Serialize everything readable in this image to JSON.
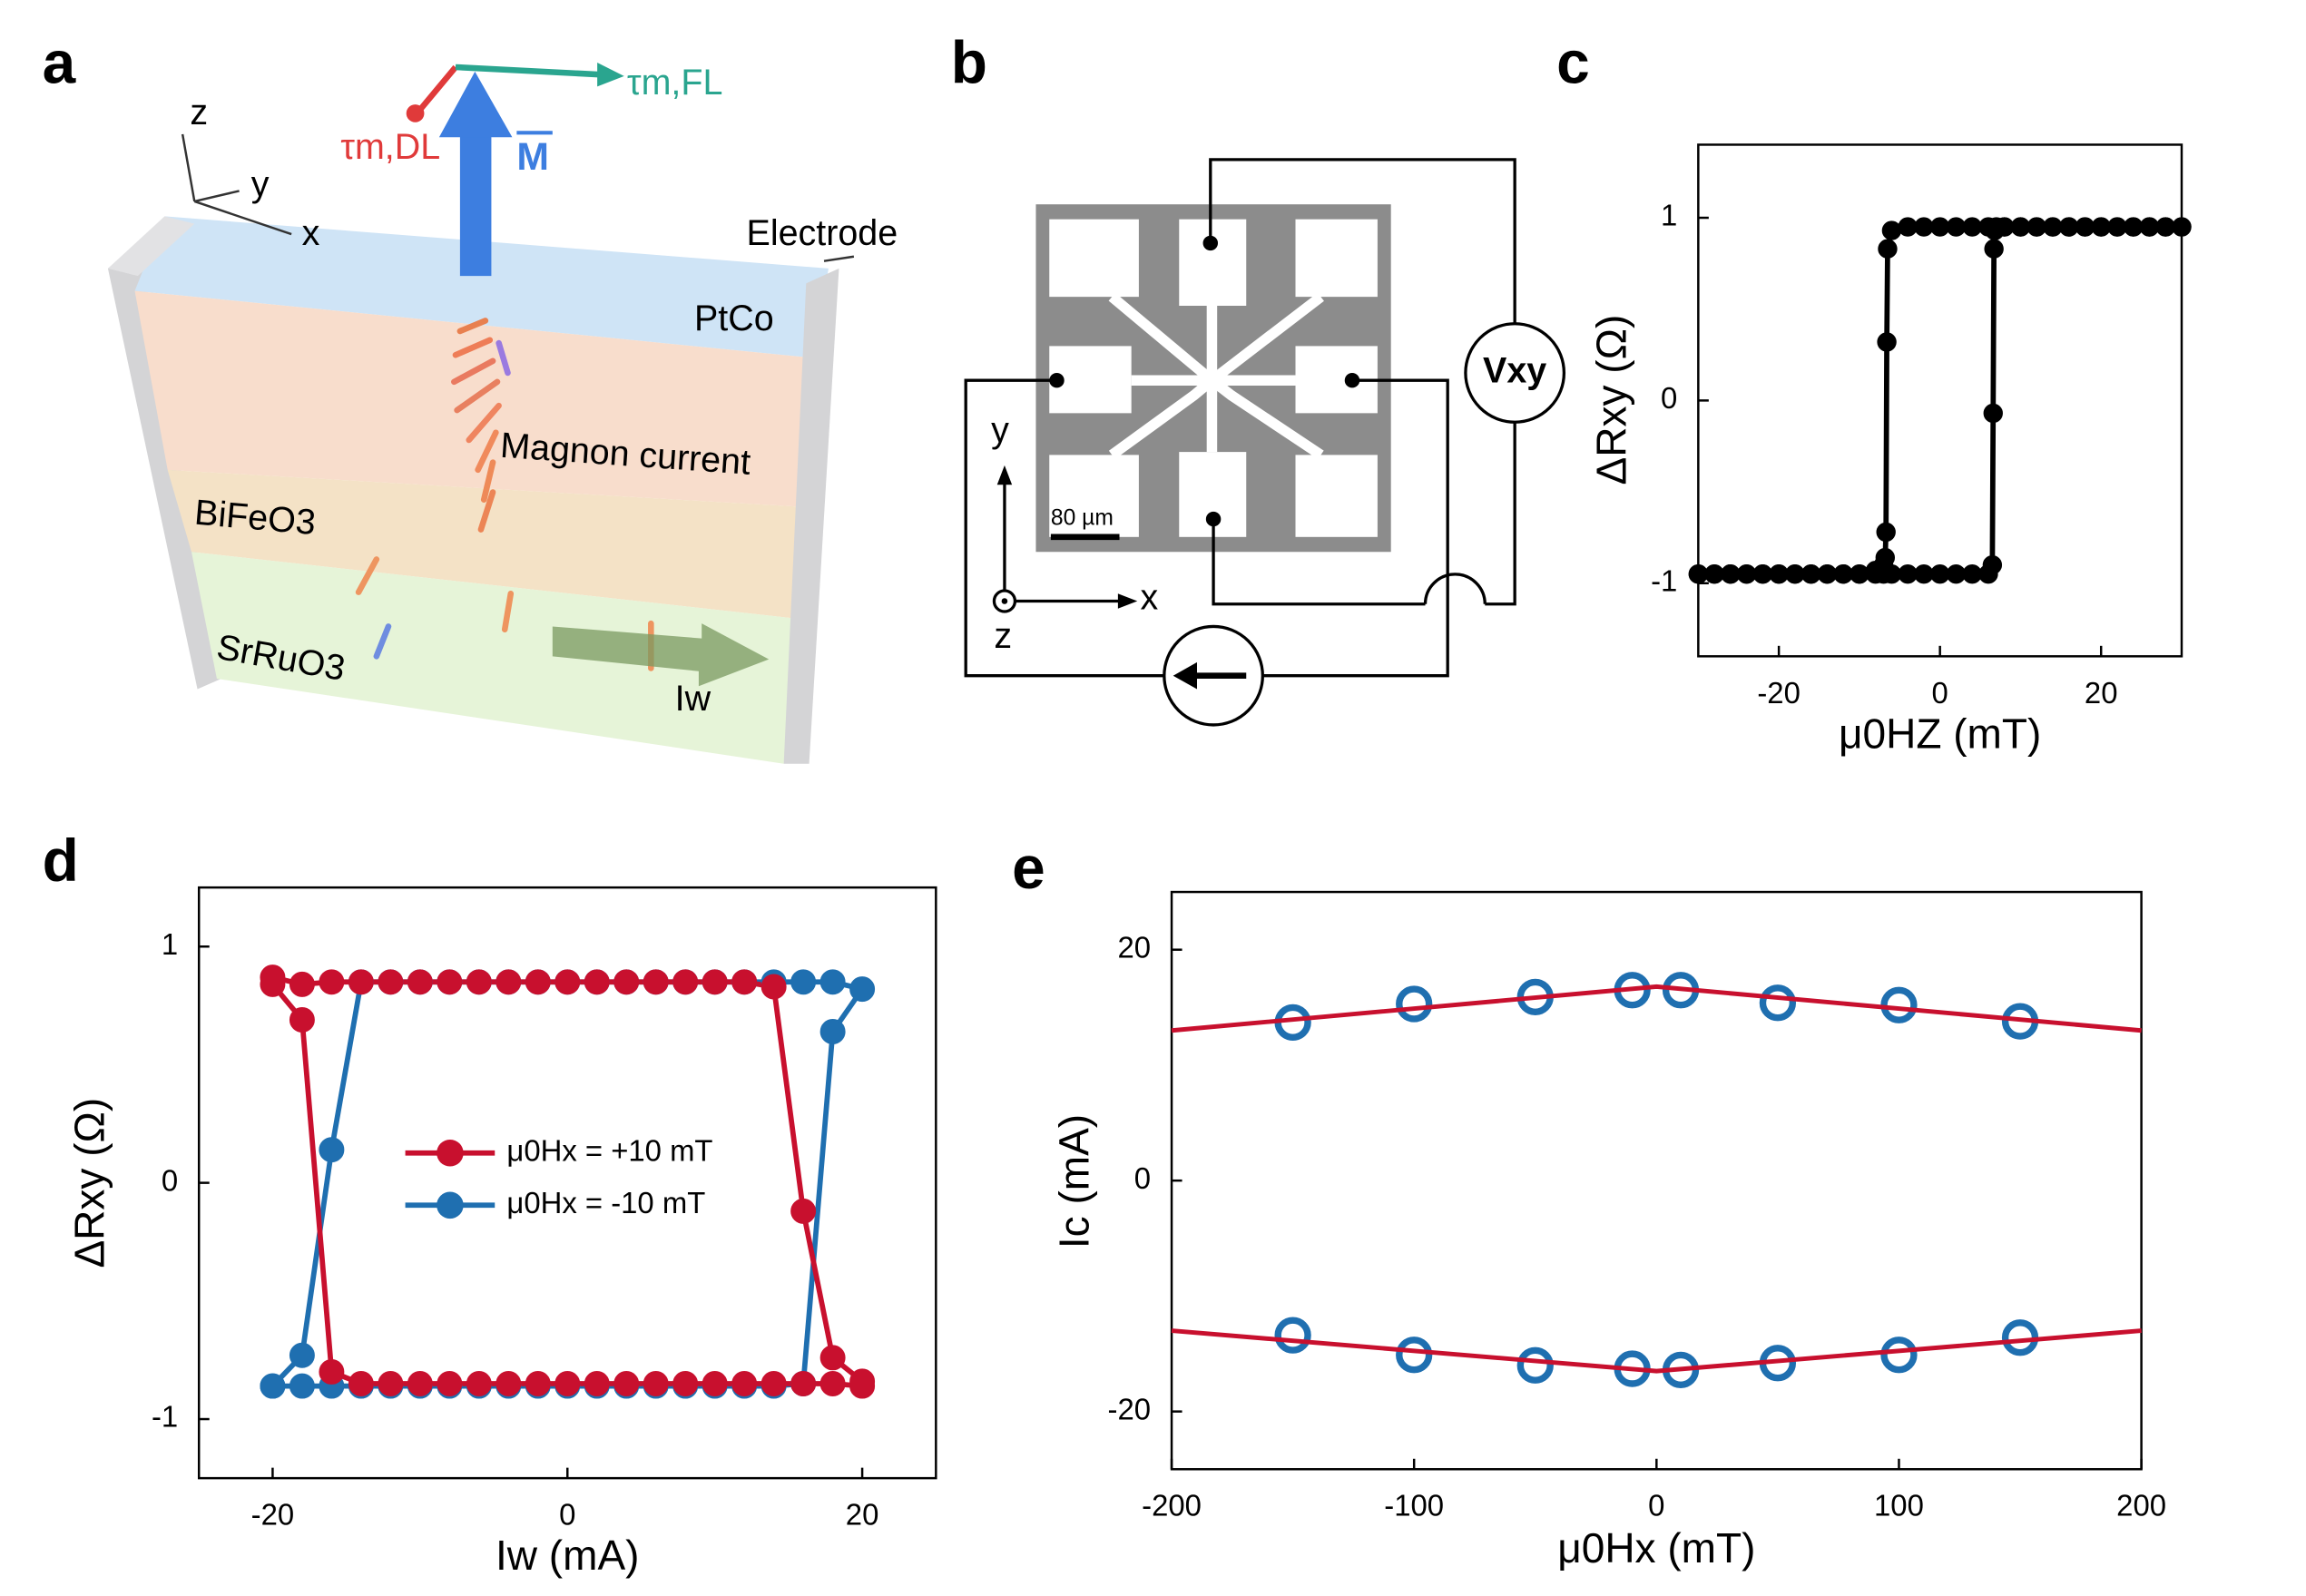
{
  "panel_labels": [
    "a",
    "b",
    "c",
    "d",
    "e"
  ],
  "panel_a": {
    "axes": [
      "z",
      "y",
      "x"
    ],
    "torque_dl": "τm,DL",
    "torque_fl": "τm,FL",
    "magnetization": "M",
    "layers": [
      "Electrode",
      "PtCo",
      "BiFeO3",
      "SrRuO3"
    ],
    "magnon_label": "Magnon current",
    "current_label": "Iw"
  },
  "panel_b": {
    "axes": [
      "y",
      "x",
      "z"
    ],
    "scale_bar": "80 µm",
    "voltage": "Vxy"
  },
  "chart_data": [
    {
      "type": "line",
      "x_label": "μ0HZ (mT)",
      "y_label": "ΔRxy (Ω)",
      "xlim": [
        -30,
        30
      ],
      "ylim": [
        -1.4,
        1.4
      ],
      "xticks": [
        -20,
        0,
        20
      ],
      "yticks": [
        -1,
        0,
        1
      ],
      "grid": false,
      "series": [
        {
          "color": "#000000",
          "style": "line-marker",
          "x": [
            -30,
            -28,
            -26,
            -24,
            -22,
            -20,
            -18,
            -16,
            -14,
            -12,
            -10,
            -8,
            -7,
            -6,
            -4,
            -2,
            0,
            2,
            4,
            6,
            6.5,
            6.6,
            6.7,
            6.8,
            7,
            8,
            10,
            12,
            14,
            16,
            18,
            20,
            22,
            24,
            26,
            28,
            30
          ],
          "values": [
            -0.95,
            -0.95,
            -0.95,
            -0.95,
            -0.95,
            -0.95,
            -0.95,
            -0.95,
            -0.95,
            -0.95,
            -0.95,
            -0.95,
            -0.95,
            -0.95,
            -0.95,
            -0.95,
            -0.95,
            -0.95,
            -0.95,
            -0.95,
            -0.9,
            -0.07,
            0.83,
            0.93,
            0.95,
            0.95,
            0.95,
            0.95,
            0.95,
            0.95,
            0.95,
            0.95,
            0.95,
            0.95,
            0.95,
            0.95,
            0.95
          ]
        },
        {
          "color": "#000000",
          "style": "line-marker",
          "x": [
            30,
            28,
            26,
            24,
            22,
            20,
            18,
            16,
            14,
            12,
            10,
            8,
            6,
            4,
            2,
            0,
            -2,
            -4,
            -6,
            -6.5,
            -6.6,
            -6.7,
            -6.8,
            -7,
            -8,
            -10,
            -12,
            -14,
            -16,
            -18,
            -20,
            -22,
            -24,
            -26,
            -28,
            -30
          ],
          "values": [
            0.95,
            0.95,
            0.95,
            0.95,
            0.95,
            0.95,
            0.95,
            0.95,
            0.95,
            0.95,
            0.95,
            0.95,
            0.95,
            0.95,
            0.95,
            0.95,
            0.95,
            0.95,
            0.93,
            0.83,
            0.32,
            -0.72,
            -0.86,
            -0.9,
            -0.93,
            -0.95,
            -0.95,
            -0.95,
            -0.95,
            -0.95,
            -0.95,
            -0.95,
            -0.95,
            -0.95,
            -0.95,
            -0.95
          ]
        }
      ]
    },
    {
      "type": "line",
      "x_label": "Iw (mA)",
      "y_label": "ΔRxy (Ω)",
      "xlim": [
        -25,
        25
      ],
      "ylim": [
        -1.25,
        1.25
      ],
      "xticks": [
        -20,
        0,
        20
      ],
      "yticks": [
        -1,
        0,
        1
      ],
      "grid": false,
      "legend": "center-left",
      "series": [
        {
          "name": "μ0Hx = -10 mT",
          "color": "#1f6fb0",
          "style": "line-marker",
          "x": [
            -20,
            -18,
            -16,
            -14,
            -12,
            -10,
            -8,
            -6,
            -4,
            -2,
            0,
            2,
            4,
            6,
            8,
            10,
            12,
            14,
            16,
            18,
            20,
            18,
            16,
            14,
            12,
            10,
            8,
            6,
            4,
            2,
            0,
            -2,
            -4,
            -6,
            -8,
            -10,
            -12,
            -14,
            -16,
            -18,
            -20
          ],
          "values": [
            -0.86,
            -0.73,
            0.14,
            0.85,
            0.85,
            0.85,
            0.85,
            0.85,
            0.85,
            0.85,
            0.85,
            0.85,
            0.85,
            0.85,
            0.85,
            0.85,
            0.85,
            0.85,
            0.85,
            0.85,
            0.82,
            0.64,
            -0.85,
            -0.86,
            -0.86,
            -0.86,
            -0.86,
            -0.86,
            -0.86,
            -0.86,
            -0.86,
            -0.86,
            -0.86,
            -0.86,
            -0.86,
            -0.86,
            -0.86,
            -0.86,
            -0.86,
            -0.86,
            -0.86
          ]
        },
        {
          "name": "μ0Hx = +10 mT",
          "color": "#c8102e",
          "style": "line-marker",
          "x": [
            -20,
            -18,
            -16,
            -14,
            -12,
            -10,
            -8,
            -6,
            -4,
            -2,
            0,
            2,
            4,
            6,
            8,
            10,
            12,
            14,
            16,
            18,
            20,
            20,
            18,
            16,
            14,
            12,
            10,
            8,
            6,
            4,
            2,
            0,
            -2,
            -4,
            -6,
            -8,
            -10,
            -12,
            -14,
            -16,
            -18,
            -20
          ],
          "values": [
            0.87,
            0.84,
            0.85,
            0.85,
            0.85,
            0.85,
            0.85,
            0.85,
            0.85,
            0.85,
            0.85,
            0.85,
            0.85,
            0.85,
            0.85,
            0.85,
            0.85,
            0.83,
            -0.12,
            -0.74,
            -0.84,
            -0.86,
            -0.85,
            -0.85,
            -0.85,
            -0.85,
            -0.85,
            -0.85,
            -0.85,
            -0.85,
            -0.85,
            -0.85,
            -0.85,
            -0.85,
            -0.85,
            -0.85,
            -0.85,
            -0.85,
            -0.85,
            -0.8,
            0.69,
            0.84
          ]
        }
      ]
    },
    {
      "type": "scatter",
      "x_label": "μ0Hx (mT)",
      "y_label": "Ic (mA)",
      "xlim": [
        -200,
        200
      ],
      "ylim": [
        -25,
        25
      ],
      "xticks": [
        -200,
        -100,
        0,
        100,
        200
      ],
      "yticks": [
        -20,
        0,
        20
      ],
      "grid": false,
      "series": [
        {
          "color": "#1f6fb0",
          "style": "open-marker",
          "x": [
            -150,
            -100,
            -50,
            -10,
            10,
            50,
            100,
            150
          ],
          "values": [
            13.7,
            15.3,
            15.9,
            16.5,
            16.5,
            15.4,
            15.2,
            13.8
          ]
        },
        {
          "color": "#1f6fb0",
          "style": "open-marker",
          "x": [
            -150,
            -100,
            -50,
            -10,
            10,
            50,
            100,
            150
          ],
          "values": [
            -13.4,
            -15.1,
            -16.0,
            -16.3,
            -16.4,
            -15.8,
            -15.1,
            -13.6
          ]
        },
        {
          "color": "#c8102e",
          "style": "line",
          "x": [
            -200,
            0,
            200
          ],
          "values": [
            13,
            16.8,
            13
          ]
        },
        {
          "color": "#c8102e",
          "style": "line",
          "x": [
            -200,
            0,
            200
          ],
          "values": [
            -13,
            -16.5,
            -13
          ]
        }
      ]
    }
  ]
}
